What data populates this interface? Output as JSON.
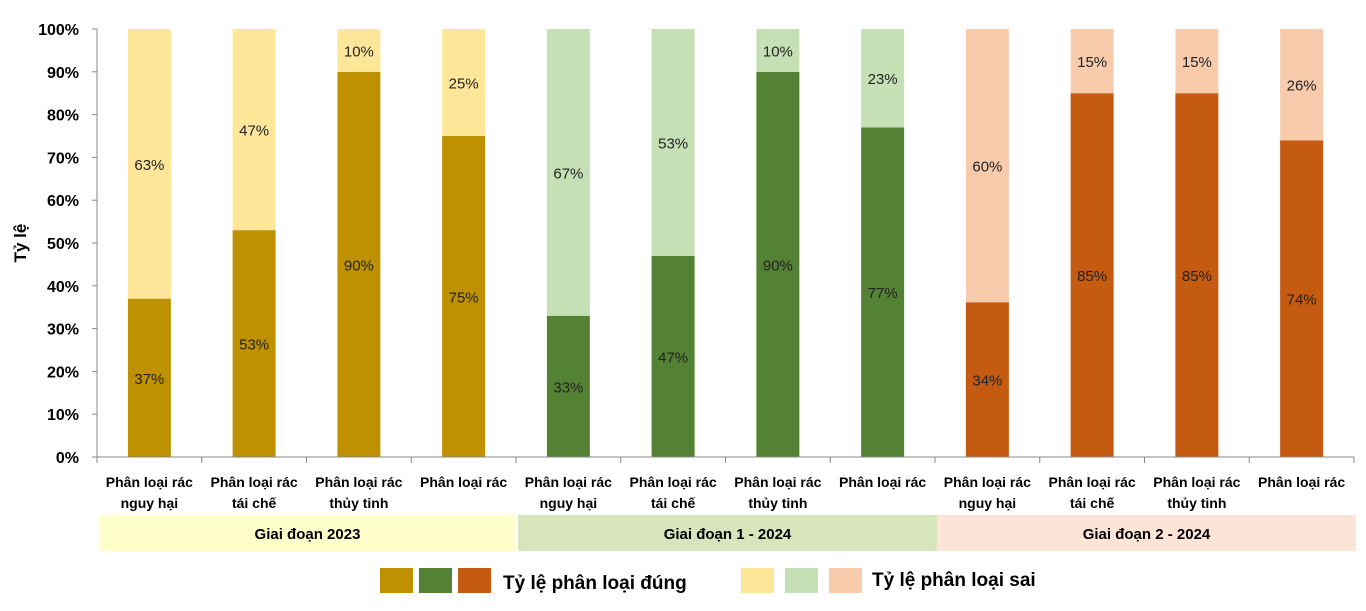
{
  "chart_data": {
    "type": "bar",
    "stacked": "100%",
    "ylabel": "Tỷ lệ",
    "ylim": [
      0,
      100
    ],
    "yticks": [
      "0%",
      "10%",
      "20%",
      "30%",
      "40%",
      "50%",
      "60%",
      "70%",
      "80%",
      "90%",
      "100%"
    ],
    "grid": false,
    "categories": [
      [
        "Phân loại rác",
        "nguy hại"
      ],
      [
        "Phân loại rác",
        "tái chế"
      ],
      [
        "Phân loại rác",
        "thủy tinh"
      ],
      [
        "Phân loại rác"
      ],
      [
        "Phân loại rác",
        "nguy hại"
      ],
      [
        "Phân loại rác",
        "tái chế"
      ],
      [
        "Phân loại rác",
        "thủy tinh"
      ],
      [
        "Phân loại rác"
      ],
      [
        "Phân loại rác",
        "nguy hại"
      ],
      [
        "Phân loại rác",
        "tái chế"
      ],
      [
        "Phân loại rác",
        "thủy tinh"
      ],
      [
        "Phân loại rác"
      ]
    ],
    "groups": [
      {
        "label": "Giai đoạn 2023",
        "band_color": "#FFFFCC",
        "dark": "#BF9000",
        "light": "#FFE699"
      },
      {
        "label": "Giai đoạn 1 - 2024",
        "band_color": "#D8E4BC",
        "dark": "#548235",
        "light": "#C5E0B4"
      },
      {
        "label": "Giai đoạn 2 - 2024",
        "band_color": "#FCE4D6",
        "dark": "#C55A11",
        "light": "#F8CBAD"
      }
    ],
    "series": [
      {
        "name": "Tỷ lệ phân loại đúng",
        "values": [
          37,
          53,
          90,
          75,
          33,
          47,
          90,
          77,
          34,
          85,
          85,
          74
        ]
      },
      {
        "name": "Tỷ lệ phân loại sai",
        "values": [
          63,
          47,
          10,
          25,
          67,
          53,
          10,
          23,
          60,
          15,
          15,
          26
        ]
      }
    ],
    "legend_position": "bottom"
  }
}
